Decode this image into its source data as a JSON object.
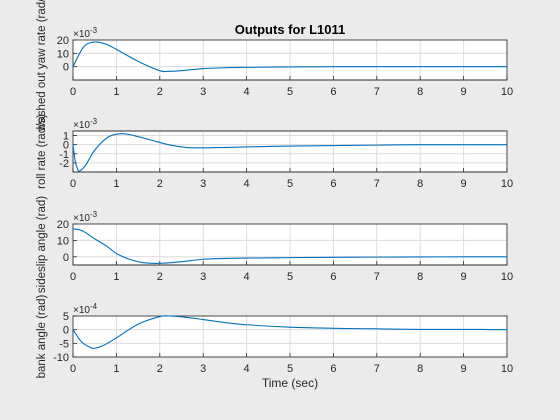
{
  "title": "Outputs for L1011",
  "xlabel": "Time (sec)",
  "colors": {
    "background": "#ebebeb",
    "axes_bg": "#ffffff",
    "line": "#0072bd",
    "grid": "#dcdcdc"
  },
  "chart_data": [
    {
      "type": "line",
      "ylabel": "washed out yaw rate (rad/s)",
      "exponent_label": "×10",
      "exponent_power": "-3",
      "xlim": [
        0,
        10
      ],
      "ylim": [
        -10,
        20
      ],
      "xticks": [
        "0",
        "1",
        "2",
        "3",
        "4",
        "5",
        "6",
        "7",
        "8",
        "9",
        "10"
      ],
      "yticks": [
        "0",
        "10",
        "20"
      ],
      "grid": true,
      "x": [
        0,
        0.25,
        0.5,
        0.75,
        1,
        1.5,
        2,
        2.2,
        2.5,
        3,
        3.5,
        4,
        5,
        6,
        7,
        8,
        9,
        10
      ],
      "y": [
        0,
        15,
        18.5,
        17,
        13,
        4,
        -3,
        -3.5,
        -3,
        -1.5,
        -0.8,
        -0.5,
        -0.2,
        0,
        0,
        0,
        0,
        0
      ]
    },
    {
      "type": "line",
      "ylabel": "roll rate (rad/s)",
      "exponent_label": "×10",
      "exponent_power": "-3",
      "xlim": [
        0,
        10
      ],
      "ylim": [
        -3,
        1.5
      ],
      "xticks": [
        "0",
        "1",
        "2",
        "3",
        "4",
        "5",
        "6",
        "7",
        "8",
        "9",
        "10"
      ],
      "yticks": [
        "-2",
        "-1",
        "0",
        "1"
      ],
      "grid": true,
      "x": [
        0,
        0.05,
        0.1,
        0.15,
        0.3,
        0.5,
        0.8,
        1.1,
        1.4,
        1.8,
        2.2,
        2.6,
        3,
        3.5,
        4,
        5,
        6,
        7,
        8,
        9,
        10
      ],
      "y": [
        0,
        -1.8,
        -2.6,
        -2.9,
        -2.2,
        -0.6,
        0.8,
        1.2,
        1.0,
        0.5,
        0,
        -0.3,
        -0.35,
        -0.3,
        -0.25,
        -0.15,
        -0.1,
        -0.05,
        0,
        0,
        0
      ]
    },
    {
      "type": "line",
      "ylabel": "sideslip angle (rad)",
      "exponent_label": "×10",
      "exponent_power": "-3",
      "xlim": [
        0,
        10
      ],
      "ylim": [
        -5,
        20
      ],
      "xticks": [
        "0",
        "1",
        "2",
        "3",
        "4",
        "5",
        "6",
        "7",
        "8",
        "9",
        "10"
      ],
      "yticks": [
        "0",
        "10",
        "20"
      ],
      "grid": true,
      "x": [
        0,
        0.2,
        0.5,
        0.8,
        1,
        1.3,
        1.6,
        2,
        2.5,
        3,
        3.5,
        4,
        5,
        6,
        7,
        8,
        9,
        10
      ],
      "y": [
        17,
        16,
        11,
        6,
        2,
        -1.5,
        -3.5,
        -4,
        -3,
        -1.5,
        -1,
        -0.8,
        -0.5,
        -0.3,
        -0.2,
        -0.1,
        0,
        0
      ]
    },
    {
      "type": "line",
      "ylabel": "bank angle (rad)",
      "exponent_label": "×10",
      "exponent_power": "-4",
      "xlim": [
        0,
        10
      ],
      "ylim": [
        -10,
        5
      ],
      "xticks": [
        "0",
        "1",
        "2",
        "3",
        "4",
        "5",
        "6",
        "7",
        "8",
        "9",
        "10"
      ],
      "yticks": [
        "-10",
        "-5",
        "0",
        "5"
      ],
      "grid": true,
      "x": [
        0,
        0.2,
        0.4,
        0.5,
        0.7,
        1,
        1.5,
        2,
        2.2,
        2.5,
        3,
        3.5,
        4,
        5,
        6,
        7,
        8,
        9,
        10
      ],
      "y": [
        0,
        -4.5,
        -6.5,
        -6.8,
        -5.8,
        -3,
        2,
        4.8,
        5.0,
        4.7,
        3.7,
        2.6,
        1.8,
        0.9,
        0.5,
        0.3,
        0.1,
        0.1,
        0
      ]
    }
  ]
}
